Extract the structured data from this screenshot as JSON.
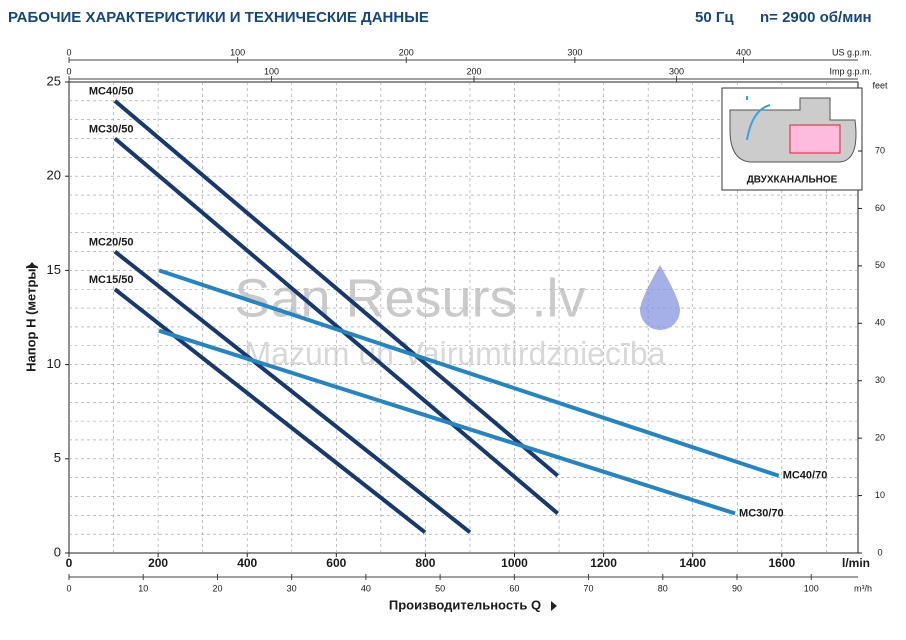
{
  "header": {
    "title": "РАБОЧИЕ ХАРАКТЕРИСТИКИ И ТЕХНИЧЕСКИЕ ДАННЫЕ",
    "frequency": "50 Гц",
    "speed": "n= 2900 об/мин"
  },
  "watermark": {
    "brand": "San Resurs .lv",
    "tagline": "Mazum un Vairumtirdzniecība"
  },
  "inset": {
    "label": "ДВУХКАНАЛЬНОЕ"
  },
  "chart_data": {
    "type": "line",
    "xlabel": "Производительность Q",
    "ylabel": "Напор H (метры)",
    "xunit": "l/min",
    "xlim": [
      0,
      1771
    ],
    "xticks": [
      0,
      200,
      400,
      600,
      800,
      1000,
      1200,
      1400,
      1600
    ],
    "ylim": [
      0,
      25
    ],
    "yticks": [
      0,
      5,
      10,
      15,
      20,
      25
    ],
    "grid": true,
    "minor_grid": {
      "x": 100,
      "y": 1
    },
    "y2label": "feet",
    "y2lim": [
      0,
      82.02
    ],
    "y2ticks": [
      0,
      10,
      20,
      30,
      40,
      50,
      60,
      70
    ],
    "x2_axes": [
      {
        "label": "US g.p.m.",
        "position": "top",
        "xlim": [
          0,
          467.9
        ],
        "xticks": [
          0,
          100,
          200,
          300,
          400
        ]
      },
      {
        "label": "Imp g.p.m.",
        "position": "top",
        "xlim": [
          0,
          389.6
        ],
        "xticks": [
          0,
          100,
          200,
          300
        ]
      },
      {
        "label": "m³/h",
        "position": "bottom",
        "xlim": [
          0,
          106.3
        ],
        "xticks": [
          0,
          10,
          20,
          30,
          40,
          50,
          60,
          70,
          80,
          90,
          100
        ]
      }
    ],
    "series": [
      {
        "name": "MC40/50",
        "color": "#17396f",
        "x": [
          103,
          1097
        ],
        "values": [
          24,
          4.1
        ]
      },
      {
        "name": "MC30/50",
        "color": "#17396f",
        "x": [
          103,
          1097
        ],
        "values": [
          22,
          2.1
        ]
      },
      {
        "name": "MC20/50",
        "color": "#17396f",
        "x": [
          103,
          900
        ],
        "values": [
          16,
          1.1
        ]
      },
      {
        "name": "MC15/50",
        "color": "#17396f",
        "x": [
          103,
          799
        ],
        "values": [
          14,
          1.1
        ]
      },
      {
        "name": "MC40/70",
        "color": "#2585c2",
        "x": [
          202,
          1593
        ],
        "values": [
          15,
          4.1
        ]
      },
      {
        "name": "MC30/70",
        "color": "#2585c2",
        "x": [
          202,
          1495
        ],
        "values": [
          11.8,
          2.1
        ]
      }
    ]
  }
}
